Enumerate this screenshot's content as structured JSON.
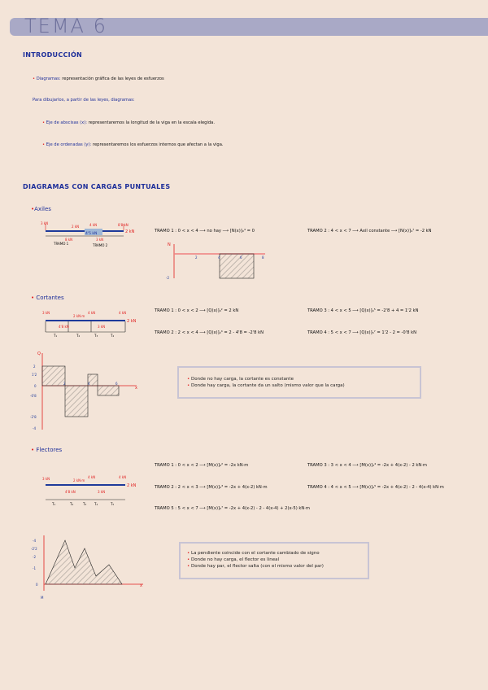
{
  "title": "TEMA 6",
  "intro": {
    "heading": "INTRODUCCIÓN",
    "def_term": "Diagramas:",
    "def_text": "representación gráfica de las leyes de esfuerzos",
    "drawing_note": "Para dibujarlos, a partir de las leyes, diagramas:",
    "x_axis_term": "Eje de abscisas (x):",
    "x_axis_text": "representaremos la longitud de la viga en la escala elegida.",
    "y_axis_term": "Eje de ordenadas (y):",
    "y_axis_text": "representaremos los esfuerzos internos que afectan a la viga."
  },
  "section2": {
    "heading": "DIAGRAMAS CON CARGAS PUNTUALES"
  },
  "axiles": {
    "label": "Axiles",
    "beam_labels": [
      "3 kN",
      "2 kN",
      "4 kN",
      "8'8 kN",
      "2 kN",
      "8 kN",
      "3 kN",
      "4'5 kN",
      "TRAMO 1",
      "TRAMO 2"
    ],
    "tramos": [
      "TRAMO 1 : 0 < x < 4 ⟶ no hay ⟶ [N(x)]₀⁴ = 0",
      "TRAMO 2 : 4 < x < 7 ⟶ Axil constante ⟶ [N(x)]₄⁷ = -2 kN"
    ],
    "diagram": {
      "axis_label": "N",
      "x_ticks": [
        "2",
        "4",
        "6",
        "8"
      ],
      "y_ticks": [
        "-2"
      ]
    }
  },
  "cortantes": {
    "label": "Cortantes",
    "beam_labels": [
      "3 kN",
      "2 kN·m",
      "4 kN",
      "4'8 kN",
      "2 kN",
      "4 kN",
      "3 kN",
      "2 kN",
      "T₁",
      "T₂",
      "T₃",
      "T₄"
    ],
    "tramos": [
      "TRAMO 1 : 0 < x < 2 ⟶ [Q(x)]₀² = 2 kN",
      "TRAMO 2 : 2 < x < 4 ⟶ [Q(x)]₂⁴ = 2 - 4'8 = -2'8 kN",
      "TRAMO 3 : 4 < x < 5 ⟶ [Q(x)]₄⁵ = -2'8 + 4 = 1'2 kN",
      "TRAMO 4 : 5 < x < 7 ⟶ [Q(x)]₅⁷ = 1'2 - 2 = -0'8 kN"
    ],
    "diagram": {
      "axis_label": "Q",
      "x_ticks": [
        "2",
        "4",
        "6"
      ],
      "y_ticks": [
        "2",
        "1'2",
        "0",
        "-0'8",
        "-2'8",
        "-4"
      ],
      "x_label": "x"
    },
    "notes": [
      "Donde no hay carga, la cortante es constante",
      "Donde hay carga, la cortante da un salto (mismo valor que la carga)"
    ]
  },
  "flectores": {
    "label": "Flectores",
    "beam_labels": [
      "3 kN",
      "2 kN·m",
      "4 kN",
      "4'8 kN",
      "2 kN",
      "4 kN",
      "3 kN",
      "2 kN",
      "T₁",
      "T₂",
      "T₃",
      "T₄",
      "T₅"
    ],
    "tramos": [
      "TRAMO 1 : 0 < x < 2 ⟶ [M(x)]₀² = -2x kN·m",
      "TRAMO 2 : 2 < x < 3 ⟶ [M(x)]₂³ = -2x + 4(x-2) kN·m",
      "TRAMO 3 : 3 < x < 4 ⟶ [M(x)]₃⁴ = -2x + 4(x-2) - 2 kN·m",
      "TRAMO 4 : 4 < x < 5 ⟶ [M(x)]₄⁵ = -2x + 4(x-2) - 2 - 4(x-4) kN·m",
      "TRAMO 5 : 5 < x < 7 ⟶ [M(x)]₅⁷ = -2x + 4(x-2) - 2 - 4(x-4) + 2(x-5) kN·m"
    ],
    "diagram": {
      "axis_label": "M",
      "y_ticks": [
        "-4",
        "-2'2",
        "-2",
        "-1",
        "0"
      ],
      "x_label": "x"
    },
    "notes": [
      "La pendiente coincide con el cortante cambiado de signo",
      "Donde no hay carga, el flector es lineal",
      "Donde hay par, el flector salta (con el mismo valor del par)"
    ]
  },
  "colors": {
    "background": "#f3e4d8",
    "title_bar": "#a9a9c6",
    "heading": "#1e2f9a",
    "load": "#e02020",
    "beam": "#1e3a9a",
    "box_border": "#c8c4d4"
  }
}
